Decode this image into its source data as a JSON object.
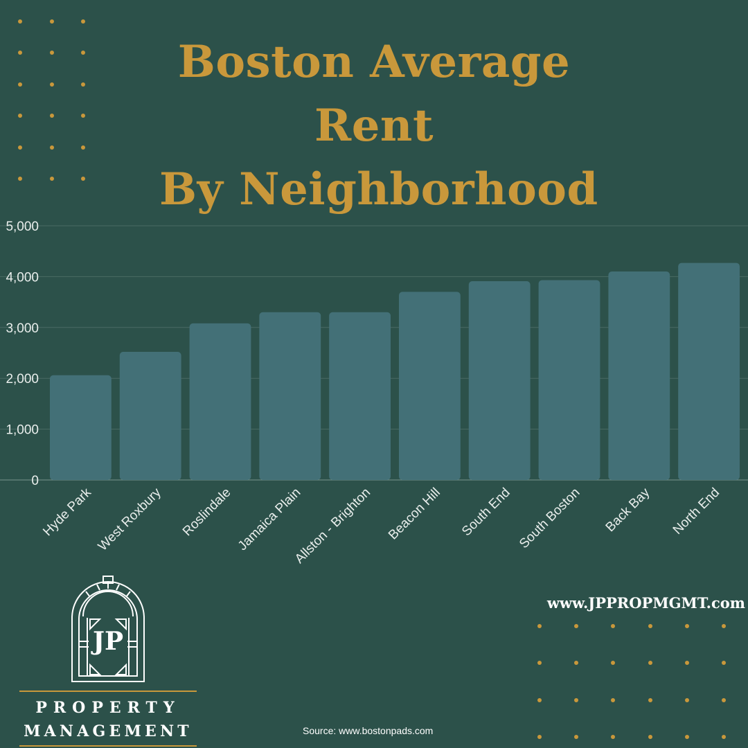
{
  "title_lines": [
    "Boston Average",
    "Rent",
    "By Neighborhood"
  ],
  "colors": {
    "background": "#2c514a",
    "bar": "#437077",
    "title": "#c9983b",
    "dots": "#c9983b",
    "gridline": "#4a6b64"
  },
  "chart_data": {
    "type": "bar",
    "title": "Boston Average Rent By Neighborhood",
    "xlabel": "",
    "ylabel": "",
    "categories": [
      "Hyde Park",
      "West Roxbury",
      "Roslindale",
      "Jamaica Plain",
      "Allston - Brighton",
      "Beacon Hill",
      "South End",
      "South Boston",
      "Back Bay",
      "North End"
    ],
    "values": [
      2060,
      2520,
      3080,
      3300,
      3300,
      3700,
      3910,
      3930,
      4100,
      4270
    ],
    "ylim": [
      0,
      5000
    ],
    "y_ticks": [
      0,
      1000,
      2000,
      3000,
      4000,
      5000
    ],
    "y_tick_labels": [
      "0",
      "1,000",
      "2,000",
      "3,000",
      "4,000",
      "5,000"
    ],
    "grid": true,
    "legend": "none"
  },
  "website": "www.JPPROPMGMT.com",
  "source": "Source: www.bostonpads.com",
  "logo": {
    "monogram": "JP",
    "line1": "PROPERTY",
    "line2": "MANAGEMENT"
  },
  "icons": [
    "dot-grid-decoration",
    "jp-arch-logo-icon"
  ]
}
